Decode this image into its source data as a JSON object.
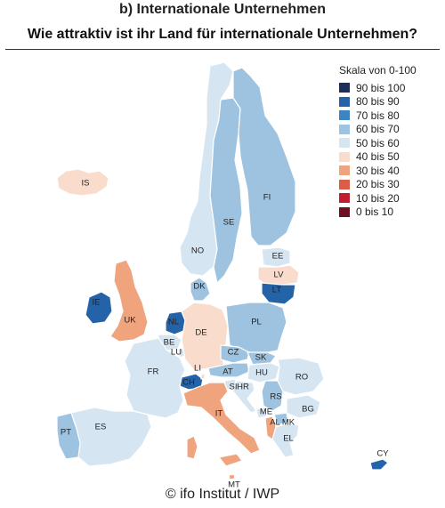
{
  "title": "b) Internationale Unternehmen",
  "subtitle": "Wie attraktiv ist ihr Land für internationale Unternehmen?",
  "credit": "© ifo Institut / IWP",
  "legend": {
    "title": "Skala von 0-100",
    "items": [
      {
        "label": "90 bis 100",
        "color": "#1d2e5e"
      },
      {
        "label": "80 bis 90",
        "color": "#2563a8"
      },
      {
        "label": "70 bis 80",
        "color": "#3d84c2"
      },
      {
        "label": "60 bis 70",
        "color": "#9dc3e1"
      },
      {
        "label": "50 bis 60",
        "color": "#d6e5f2"
      },
      {
        "label": "40 bis 50",
        "color": "#f9dccb"
      },
      {
        "label": "30 bis 40",
        "color": "#efa47e"
      },
      {
        "label": "20 bis 30",
        "color": "#dd5c48"
      },
      {
        "label": "10 bis 20",
        "color": "#c21c2c"
      },
      {
        "label": "0 bis 10",
        "color": "#6b0f22"
      }
    ]
  },
  "countries": [
    {
      "code": "IS",
      "class": "40 bis 50"
    },
    {
      "code": "FI",
      "class": "60 bis 70"
    },
    {
      "code": "SE",
      "class": "60 bis 70"
    },
    {
      "code": "NO",
      "class": "50 bis 60"
    },
    {
      "code": "EE",
      "class": "50 bis 60"
    },
    {
      "code": "LV",
      "class": "40 bis 50"
    },
    {
      "code": "LT",
      "class": "80 bis 90"
    },
    {
      "code": "DK",
      "class": "60 bis 70"
    },
    {
      "code": "IE",
      "class": "80 bis 90"
    },
    {
      "code": "UK",
      "class": "30 bis 40"
    },
    {
      "code": "NL",
      "class": "80 bis 90"
    },
    {
      "code": "BE",
      "class": "50 bis 60"
    },
    {
      "code": "LU",
      "class": "50 bis 60"
    },
    {
      "code": "DE",
      "class": "40 bis 50"
    },
    {
      "code": "PL",
      "class": "60 bis 70"
    },
    {
      "code": "CZ",
      "class": "60 bis 70"
    },
    {
      "code": "SK",
      "class": "60 bis 70"
    },
    {
      "code": "AT",
      "class": "60 bis 70"
    },
    {
      "code": "HU",
      "class": "50 bis 60"
    },
    {
      "code": "CH",
      "class": "80 bis 90"
    },
    {
      "code": "LI",
      "class": "40 bis 50"
    },
    {
      "code": "FR",
      "class": "50 bis 60"
    },
    {
      "code": "SI",
      "class": "50 bis 60"
    },
    {
      "code": "HR",
      "class": "50 bis 60"
    },
    {
      "code": "RS",
      "class": "60 bis 70"
    },
    {
      "code": "RO",
      "class": "50 bis 60"
    },
    {
      "code": "BG",
      "class": "50 bis 60"
    },
    {
      "code": "ME",
      "class": "50 bis 60"
    },
    {
      "code": "AL",
      "class": "30 bis 40"
    },
    {
      "code": "MK",
      "class": "60 bis 70"
    },
    {
      "code": "EL",
      "class": "50 bis 60"
    },
    {
      "code": "IT",
      "class": "30 bis 40"
    },
    {
      "code": "MT",
      "class": "30 bis 40"
    },
    {
      "code": "ES",
      "class": "50 bis 60"
    },
    {
      "code": "PT",
      "class": "60 bis 70"
    },
    {
      "code": "CY",
      "class": "80 bis 90"
    }
  ]
}
